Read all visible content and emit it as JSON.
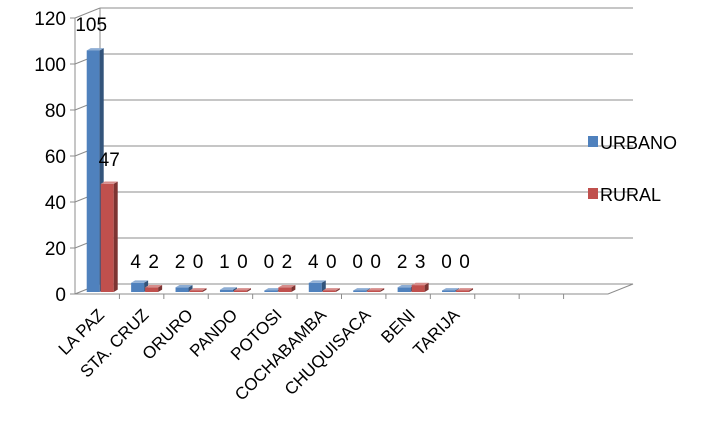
{
  "chart_data": {
    "type": "bar",
    "style": "3d-clustered-column",
    "categories": [
      "LA PAZ",
      "STA. CRUZ",
      "ORURO",
      "PANDO",
      "POTOSI",
      "COCHABAMBA",
      "CHUQUISACA",
      "BENI",
      "TARIJA"
    ],
    "series": [
      {
        "name": "URBANO",
        "values": [
          105,
          4,
          2,
          1,
          0,
          4,
          0,
          2,
          0
        ],
        "color": "#4F81BD"
      },
      {
        "name": "RURAL",
        "values": [
          47,
          2,
          0,
          0,
          2,
          0,
          0,
          3,
          0
        ],
        "color": "#C0504D"
      }
    ],
    "yticks": [
      "0",
      "20",
      "40",
      "60",
      "80",
      "100",
      "120"
    ],
    "ylim": [
      0,
      120
    ],
    "grid": true,
    "legend_position": "right",
    "title": "",
    "xlabel": "",
    "ylabel": ""
  }
}
